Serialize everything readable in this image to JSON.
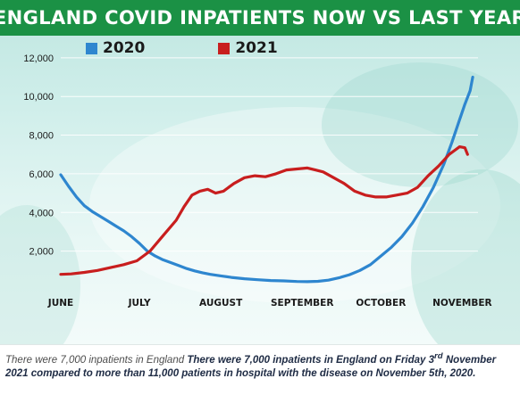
{
  "header": {
    "title": "ENGLAND COVID INPATIENTS NOW VS LAST YEAR"
  },
  "colors": {
    "title_bar": "#1b9145",
    "series_2020": "#2e86cf",
    "series_2021": "#c81e1e"
  },
  "caption": {
    "lead": "There were 7,000 inpatients in England",
    "bold_pre": "There were 7,000 inpatients in England on Friday 3",
    "superscript": "rd",
    "bold_post": "November 2021 compared to more than 11,000 patients in hospital with the disease on November 5th, 2020."
  },
  "chart_data": {
    "type": "line",
    "title": "ENGLAND COVID INPATIENTS NOW VS LAST YEAR",
    "xlabel": "",
    "ylabel": "",
    "ylim": [
      0,
      12500
    ],
    "yticks": [
      2000,
      4000,
      6000,
      8000,
      10000,
      12000
    ],
    "ytick_labels": [
      "2,000",
      "4,000",
      "6,000",
      "8,000",
      "10,000",
      "12,000"
    ],
    "x_range": [
      "06-01",
      "11-07"
    ],
    "xtick_labels": [
      {
        "label": "JUNE",
        "date": "06-01"
      },
      {
        "label": "JULY",
        "date": "07-01"
      },
      {
        "label": "AUGUST",
        "date": "08-01"
      },
      {
        "label": "SEPTEMBER",
        "date": "09-01"
      },
      {
        "label": "OCTOBER",
        "date": "10-01"
      },
      {
        "label": "NOVEMBER",
        "date": "11-01"
      }
    ],
    "grid": true,
    "legend": "top-left",
    "series": [
      {
        "name": "2020",
        "color": "#2e86cf",
        "points": [
          [
            "06-01",
            5950
          ],
          [
            "06-04",
            5350
          ],
          [
            "06-07",
            4800
          ],
          [
            "06-10",
            4350
          ],
          [
            "06-13",
            4050
          ],
          [
            "06-16",
            3800
          ],
          [
            "06-19",
            3550
          ],
          [
            "06-22",
            3300
          ],
          [
            "06-25",
            3050
          ],
          [
            "06-28",
            2750
          ],
          [
            "07-01",
            2400
          ],
          [
            "07-04",
            2000
          ],
          [
            "07-07",
            1750
          ],
          [
            "07-10",
            1550
          ],
          [
            "07-13",
            1400
          ],
          [
            "07-16",
            1250
          ],
          [
            "07-19",
            1100
          ],
          [
            "07-22",
            980
          ],
          [
            "07-25",
            880
          ],
          [
            "07-28",
            800
          ],
          [
            "08-01",
            720
          ],
          [
            "08-05",
            640
          ],
          [
            "08-10",
            570
          ],
          [
            "08-15",
            520
          ],
          [
            "08-20",
            480
          ],
          [
            "08-25",
            460
          ],
          [
            "08-30",
            430
          ],
          [
            "09-03",
            420
          ],
          [
            "09-07",
            440
          ],
          [
            "09-11",
            500
          ],
          [
            "09-15",
            620
          ],
          [
            "09-19",
            780
          ],
          [
            "09-23",
            1000
          ],
          [
            "09-27",
            1300
          ],
          [
            "10-01",
            1750
          ],
          [
            "10-05",
            2200
          ],
          [
            "10-09",
            2750
          ],
          [
            "10-13",
            3450
          ],
          [
            "10-17",
            4300
          ],
          [
            "10-21",
            5300
          ],
          [
            "10-25",
            6500
          ],
          [
            "10-28",
            7600
          ],
          [
            "10-31",
            8800
          ],
          [
            "11-02",
            9600
          ],
          [
            "11-04",
            10300
          ],
          [
            "11-05",
            11000
          ]
        ]
      },
      {
        "name": "2021",
        "color": "#c81e1e",
        "points": [
          [
            "06-01",
            800
          ],
          [
            "06-05",
            820
          ],
          [
            "06-10",
            900
          ],
          [
            "06-15",
            1000
          ],
          [
            "06-20",
            1150
          ],
          [
            "06-25",
            1300
          ],
          [
            "06-30",
            1500
          ],
          [
            "07-05",
            2000
          ],
          [
            "07-10",
            2800
          ],
          [
            "07-15",
            3600
          ],
          [
            "07-18",
            4300
          ],
          [
            "07-21",
            4900
          ],
          [
            "07-24",
            5100
          ],
          [
            "07-27",
            5200
          ],
          [
            "07-30",
            5000
          ],
          [
            "08-02",
            5100
          ],
          [
            "08-06",
            5500
          ],
          [
            "08-10",
            5800
          ],
          [
            "08-14",
            5900
          ],
          [
            "08-18",
            5850
          ],
          [
            "08-22",
            6000
          ],
          [
            "08-26",
            6200
          ],
          [
            "08-30",
            6250
          ],
          [
            "09-03",
            6300
          ],
          [
            "09-06",
            6200
          ],
          [
            "09-09",
            6100
          ],
          [
            "09-13",
            5800
          ],
          [
            "09-17",
            5500
          ],
          [
            "09-21",
            5100
          ],
          [
            "09-25",
            4900
          ],
          [
            "09-29",
            4800
          ],
          [
            "10-03",
            4800
          ],
          [
            "10-07",
            4900
          ],
          [
            "10-11",
            5000
          ],
          [
            "10-15",
            5300
          ],
          [
            "10-19",
            5900
          ],
          [
            "10-23",
            6400
          ],
          [
            "10-27",
            7000
          ],
          [
            "10-31",
            7400
          ],
          [
            "11-02",
            7350
          ],
          [
            "11-03",
            7000
          ]
        ]
      }
    ]
  }
}
